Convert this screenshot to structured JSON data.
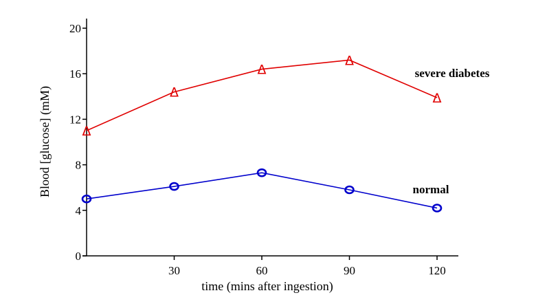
{
  "chart_data": {
    "type": "line",
    "xlabel": "time (mins after ingestion)",
    "ylabel": "Blood [glucose] (mM)",
    "xlim": [
      0,
      130
    ],
    "ylim": [
      0,
      20
    ],
    "xticks": [
      30,
      60,
      90,
      120
    ],
    "yticks": [
      0,
      4,
      8,
      12,
      16,
      20
    ],
    "grid": false,
    "series": [
      {
        "name": "severe diabetes",
        "color": "#e00000",
        "marker": "triangle",
        "marker_glyph": "Δ",
        "x": [
          0,
          30,
          60,
          90,
          120
        ],
        "y": [
          11.0,
          14.4,
          16.4,
          17.2,
          13.9
        ]
      },
      {
        "name": "normal",
        "color": "#0000cc",
        "marker": "circle",
        "x": [
          0,
          30,
          60,
          90,
          120
        ],
        "y": [
          5.0,
          6.1,
          7.3,
          5.8,
          4.2
        ]
      }
    ]
  }
}
